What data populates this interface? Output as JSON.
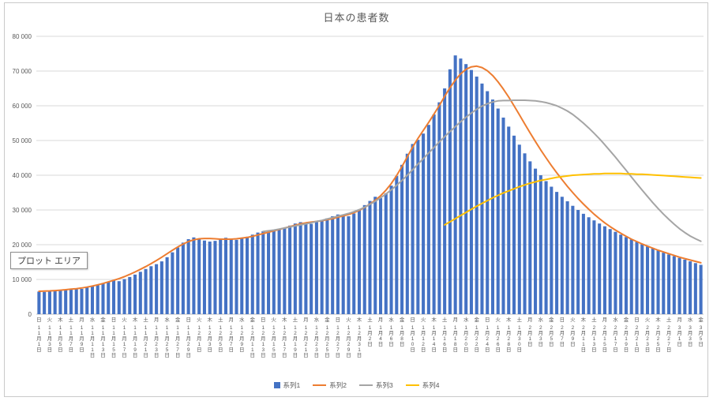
{
  "chart_data": {
    "type": "combo",
    "title": "日本の患者数",
    "plot_area_label": "プロット エリア",
    "legend_position": "bottom",
    "grid": true,
    "y_axis": {
      "min": 0,
      "max": 80000,
      "step": 10000,
      "tick_labels": [
        "0",
        "10 000",
        "20 000",
        "30 000",
        "40 000",
        "50 000",
        "60 000",
        "70 000",
        "80 000"
      ]
    },
    "x_axis": {
      "label_every_days": 2,
      "ticks": [
        [
          "日",
          "11月1日"
        ],
        [
          "火",
          "11月3日"
        ],
        [
          "木",
          "11月5日"
        ],
        [
          "土",
          "11月7日"
        ],
        [
          "月",
          "11月9日"
        ],
        [
          "水",
          "11月11日"
        ],
        [
          "金",
          "11月13日"
        ],
        [
          "日",
          "11月15日"
        ],
        [
          "火",
          "11月17日"
        ],
        [
          "木",
          "11月19日"
        ],
        [
          "土",
          "11月21日"
        ],
        [
          "月",
          "11月23日"
        ],
        [
          "水",
          "11月25日"
        ],
        [
          "金",
          "11月27日"
        ],
        [
          "日",
          "11月29日"
        ],
        [
          "火",
          "12月1日"
        ],
        [
          "木",
          "12月3日"
        ],
        [
          "土",
          "12月5日"
        ],
        [
          "月",
          "12月7日"
        ],
        [
          "水",
          "12月9日"
        ],
        [
          "金",
          "12月11日"
        ],
        [
          "日",
          "12月13日"
        ],
        [
          "火",
          "12月15日"
        ],
        [
          "木",
          "12月17日"
        ],
        [
          "土",
          "12月19日"
        ],
        [
          "月",
          "12月21日"
        ],
        [
          "水",
          "12月23日"
        ],
        [
          "金",
          "12月25日"
        ],
        [
          "日",
          "12月27日"
        ],
        [
          "火",
          "12月29日"
        ],
        [
          "木",
          "12月31日"
        ],
        [
          "土",
          "1月2日"
        ],
        [
          "月",
          "1月4日"
        ],
        [
          "水",
          "1月6日"
        ],
        [
          "金",
          "1月8日"
        ],
        [
          "日",
          "1月10日"
        ],
        [
          "火",
          "1月12日"
        ],
        [
          "木",
          "1月14日"
        ],
        [
          "土",
          "1月16日"
        ],
        [
          "月",
          "1月18日"
        ],
        [
          "水",
          "1月20日"
        ],
        [
          "金",
          "1月22日"
        ],
        [
          "日",
          "1月24日"
        ],
        [
          "火",
          "1月26日"
        ],
        [
          "木",
          "1月28日"
        ],
        [
          "土",
          "1月30日"
        ],
        [
          "月",
          "2月1日"
        ],
        [
          "水",
          "2月3日"
        ],
        [
          "金",
          "2月5日"
        ],
        [
          "日",
          "2月7日"
        ],
        [
          "火",
          "2月9日"
        ],
        [
          "木",
          "2月11日"
        ],
        [
          "土",
          "2月13日"
        ],
        [
          "月",
          "2月15日"
        ],
        [
          "水",
          "2月17日"
        ],
        [
          "金",
          "2月19日"
        ],
        [
          "日",
          "2月21日"
        ],
        [
          "火",
          "2月23日"
        ],
        [
          "木",
          "2月25日"
        ],
        [
          "土",
          "2月27日"
        ],
        [
          "月",
          "3月1日"
        ],
        [
          "水",
          "3月3日"
        ],
        [
          "金",
          "3月5日"
        ]
      ]
    },
    "series": [
      {
        "name": "系列1",
        "type": "bar",
        "color": "#4472C4",
        "start_index": 0,
        "values": [
          6500,
          6400,
          6700,
          6600,
          6900,
          7100,
          7300,
          7500,
          7300,
          7700,
          8000,
          8400,
          8800,
          9300,
          9700,
          9500,
          10100,
          10700,
          11400,
          12200,
          13000,
          13800,
          14400,
          15200,
          16400,
          17800,
          19200,
          20600,
          21600,
          22100,
          21700,
          21200,
          20900,
          21100,
          21600,
          22000,
          21700,
          21400,
          21800,
          22300,
          22900,
          23500,
          23900,
          23600,
          23900,
          24400,
          24900,
          25500,
          26100,
          26500,
          26200,
          26000,
          26500,
          27000,
          27600,
          28200,
          28700,
          28400,
          28200,
          29000,
          30200,
          31400,
          32600,
          33800,
          33400,
          34800,
          37000,
          39800,
          43000,
          46200,
          49000,
          50200,
          52000,
          54500,
          57500,
          61000,
          65000,
          70500,
          74500,
          73600,
          72000,
          70300,
          68400,
          66400,
          64200,
          61800,
          59200,
          56600,
          54000,
          51400,
          48800,
          46300,
          44000,
          41900,
          40000,
          38300,
          36700,
          35200,
          33800,
          32500,
          31200,
          30000,
          28900,
          27900,
          27000,
          26100,
          25300,
          24500,
          23700,
          22900,
          22200,
          21500,
          20800,
          20100,
          19500,
          18900,
          18300,
          17700,
          17200,
          16700,
          16200,
          15700,
          15200,
          14700,
          14200
        ]
      },
      {
        "name": "系列2",
        "type": "line",
        "color": "#ED7D31",
        "start_index": 0,
        "values": [
          6600,
          6650,
          6700,
          6800,
          6900,
          7050,
          7200,
          7350,
          7550,
          7800,
          8100,
          8450,
          8850,
          9300,
          9750,
          10250,
          10800,
          11450,
          12150,
          12900,
          13700,
          14550,
          15450,
          16400,
          17400,
          18400,
          19350,
          20200,
          20900,
          21400,
          21700,
          21800,
          21800,
          21700,
          21600,
          21600,
          21600,
          21700,
          21900,
          22100,
          22400,
          22800,
          23200,
          23600,
          24000,
          24400,
          24800,
          25200,
          25600,
          26000,
          26300,
          26500,
          26700,
          26900,
          27200,
          27500,
          27900,
          28300,
          28700,
          29200,
          29900,
          30700,
          31700,
          32800,
          34100,
          35700,
          37600,
          39900,
          42500,
          45300,
          48100,
          50600,
          52900,
          55200,
          57600,
          60100,
          62700,
          65200,
          67400,
          69200,
          70500,
          71200,
          71400,
          71000,
          70100,
          68700,
          66900,
          64800,
          62500,
          60000,
          57400,
          54800,
          52200,
          49700,
          47300,
          45000,
          42800,
          40700,
          38700,
          36800,
          35000,
          33300,
          31700,
          30200,
          28800,
          27500,
          26300,
          25200,
          24200,
          23300,
          22400,
          21600,
          20900,
          20200,
          19600,
          19000,
          18400,
          17900,
          17400,
          16900,
          16400,
          16000,
          15600,
          15200,
          14800
        ]
      },
      {
        "name": "系列3",
        "type": "line",
        "color": "#A5A5A5",
        "start_index": 42,
        "values": [
          23800,
          24000,
          24200,
          24500,
          24800,
          25100,
          25400,
          25700,
          26000,
          26300,
          26700,
          27000,
          27400,
          27800,
          28200,
          28600,
          29000,
          29500,
          30100,
          30800,
          31600,
          32500,
          33500,
          34600,
          35800,
          37100,
          38500,
          40000,
          41600,
          43200,
          44800,
          46400,
          48000,
          49600,
          51100,
          52600,
          54000,
          55400,
          56700,
          57900,
          59000,
          59900,
          60600,
          61100,
          61400,
          61500,
          61500,
          61600,
          61600,
          61600,
          61500,
          61400,
          61200,
          60900,
          60500,
          60000,
          59300,
          58500,
          57500,
          56300,
          55000,
          53600,
          52100,
          50500,
          48800,
          47000,
          45200,
          43300,
          41400,
          39500,
          37600,
          35700,
          33900,
          32100,
          30400,
          28800,
          27300,
          25900,
          24600,
          23500,
          22500,
          21700,
          21000
        ]
      },
      {
        "name": "系列4",
        "type": "line",
        "color": "#FFC000",
        "start_index": 76,
        "values": [
          25700,
          26600,
          27500,
          28400,
          29300,
          30200,
          31100,
          31900,
          32700,
          33500,
          34200,
          34900,
          35500,
          36100,
          36700,
          37200,
          37700,
          38100,
          38500,
          38800,
          39100,
          39400,
          39600,
          39800,
          40000,
          40100,
          40200,
          40300,
          40400,
          40400,
          40500,
          40500,
          40500,
          40500,
          40400,
          40400,
          40300,
          40300,
          40200,
          40100,
          40000,
          39900,
          39800,
          39700,
          39600,
          39500,
          39400,
          39300,
          39200
        ]
      }
    ]
  }
}
